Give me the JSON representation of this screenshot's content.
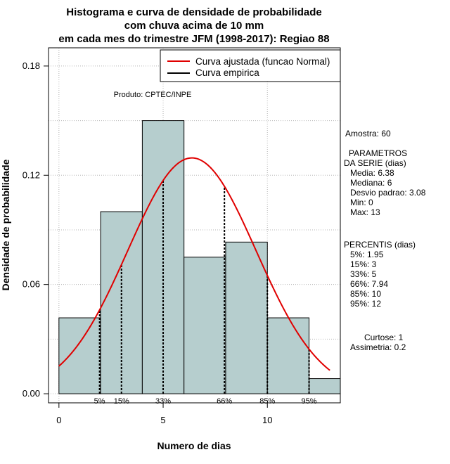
{
  "chart_data": {
    "type": "bar",
    "title_lines": [
      "Histograma e curva de densidade de probabilidade",
      "com chuva acima de 10 mm",
      "em cada mes do trimestre JFM (1998-2017): Regiao 88"
    ],
    "xlabel": "Numero de dias",
    "ylabel": "Densidade de probabilidade",
    "xlim": [
      -0.5,
      13.5
    ],
    "ylim": [
      -0.005,
      0.19
    ],
    "x_ticks": [
      0,
      5,
      10
    ],
    "y_ticks": [
      0.0,
      0.06,
      0.12,
      0.18
    ],
    "y_tick_labels": [
      "0.00",
      "0.06",
      "0.12",
      "0.18"
    ],
    "grid": true,
    "bins": [
      {
        "x0": 0,
        "x1": 2,
        "density": 0.0417
      },
      {
        "x0": 2,
        "x1": 4,
        "density": 0.1
      },
      {
        "x0": 4,
        "x1": 6,
        "density": 0.15
      },
      {
        "x0": 6,
        "x1": 8,
        "density": 0.075
      },
      {
        "x0": 8,
        "x1": 10,
        "density": 0.0833
      },
      {
        "x0": 10,
        "x1": 12,
        "density": 0.0417
      },
      {
        "x0": 12,
        "x1": 14,
        "density": 0.0083
      }
    ],
    "bar_color": "#b6cece",
    "normal_curve": {
      "mean": 6.38,
      "sd": 3.08,
      "x_from": 0,
      "x_to": 13,
      "color": "#e00000"
    },
    "percentiles": [
      {
        "label": "5%",
        "x": 1.95
      },
      {
        "label": "15%",
        "x": 3
      },
      {
        "label": "33%",
        "x": 5
      },
      {
        "label": "66%",
        "x": 7.94
      },
      {
        "label": "85%",
        "x": 10
      },
      {
        "label": "95%",
        "x": 12
      }
    ],
    "legend": {
      "position": "top-right",
      "entries": [
        {
          "label": "Curva ajustada (funcao Normal)",
          "color": "#e00000"
        },
        {
          "label": "Curva empirica",
          "color": "#000000"
        }
      ]
    },
    "annotation": "Produto: CPTEC/INPE",
    "stats_text": [
      "Amostra: 60",
      "PARAMETROS",
      "DA SERIE (dias)",
      "Media: 6.38",
      "Mediana: 6",
      "Desvio padrao: 3.08",
      "Min: 0",
      "Max: 13",
      "PERCENTIS (dias)",
      "5%: 1.95",
      "15%: 3",
      "33%: 5",
      "66%: 7.94",
      "85%: 10",
      "95%: 12",
      "Curtose: 1",
      "Assimetria: 0.2"
    ]
  }
}
